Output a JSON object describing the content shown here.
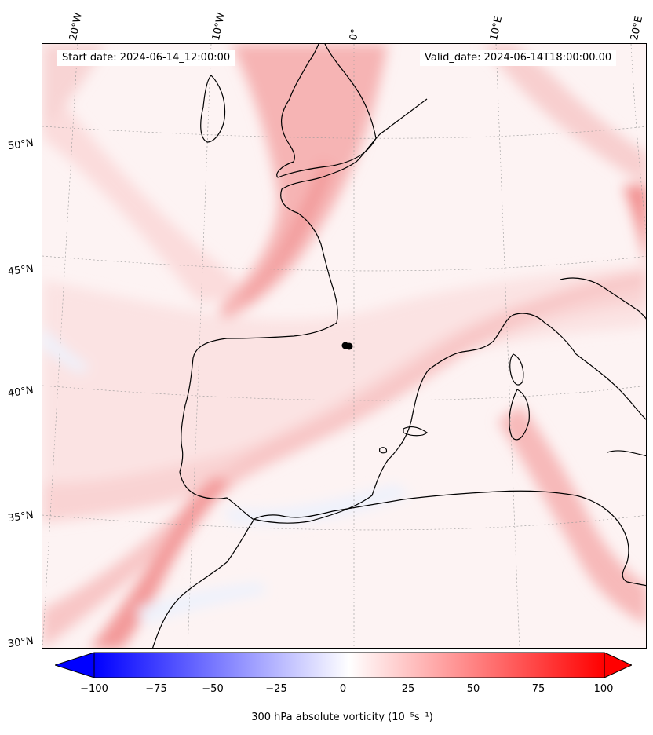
{
  "map": {
    "start_date": "Start date: 2024-06-14_12:00:00",
    "valid_date": "Valid_date: 2024-06-14T18:00:00.00",
    "lon_labels": [
      "20°W",
      "10°W",
      "0°",
      "10°E",
      "20°E"
    ],
    "lat_labels": [
      "50°N",
      "45°N",
      "40°N",
      "35°N",
      "30°N"
    ],
    "marker": "black-dot",
    "colors": {
      "positive": "#ff0000",
      "negative": "#0000ff",
      "background": "#fdf6f6"
    }
  },
  "colorbar": {
    "ticks": [
      "−100",
      "−75",
      "−50",
      "−25",
      "0",
      "25",
      "50",
      "75",
      "100"
    ],
    "label": "300 hPa absolute vorticity (10⁻⁵s⁻¹)",
    "range": [
      -100,
      100
    ],
    "extend": "both",
    "colormap": "bwr"
  }
}
